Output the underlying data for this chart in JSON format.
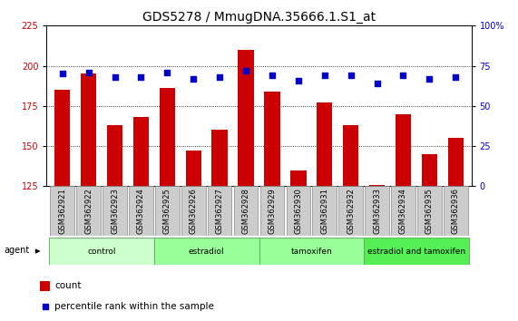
{
  "title": "GDS5278 / MmugDNA.35666.1.S1_at",
  "samples": [
    "GSM362921",
    "GSM362922",
    "GSM362923",
    "GSM362924",
    "GSM362925",
    "GSM362926",
    "GSM362927",
    "GSM362928",
    "GSM362929",
    "GSM362930",
    "GSM362931",
    "GSM362932",
    "GSM362933",
    "GSM362934",
    "GSM362935",
    "GSM362936"
  ],
  "count_values": [
    185,
    195,
    163,
    168,
    186,
    147,
    160,
    210,
    184,
    135,
    177,
    163,
    126,
    170,
    145,
    155
  ],
  "percentile_values": [
    70,
    71,
    68,
    68,
    71,
    67,
    68,
    72,
    69,
    66,
    69,
    69,
    64,
    69,
    67,
    68
  ],
  "ylim_left": [
    125,
    225
  ],
  "ylim_right": [
    0,
    100
  ],
  "yticks_left": [
    125,
    150,
    175,
    200,
    225
  ],
  "yticks_right": [
    0,
    25,
    50,
    75,
    100
  ],
  "bar_color": "#cc0000",
  "dot_color": "#0000cc",
  "groups": [
    {
      "label": "control",
      "start": 0,
      "end": 4,
      "color": "#ccffcc"
    },
    {
      "label": "estradiol",
      "start": 4,
      "end": 8,
      "color": "#99ff99"
    },
    {
      "label": "tamoxifen",
      "start": 8,
      "end": 12,
      "color": "#99ff99"
    },
    {
      "label": "estradiol and tamoxifen",
      "start": 12,
      "end": 16,
      "color": "#55ee55"
    }
  ],
  "legend_count_label": "count",
  "legend_percentile_label": "percentile rank within the sample",
  "title_fontsize": 10,
  "tick_label_fontsize": 6
}
